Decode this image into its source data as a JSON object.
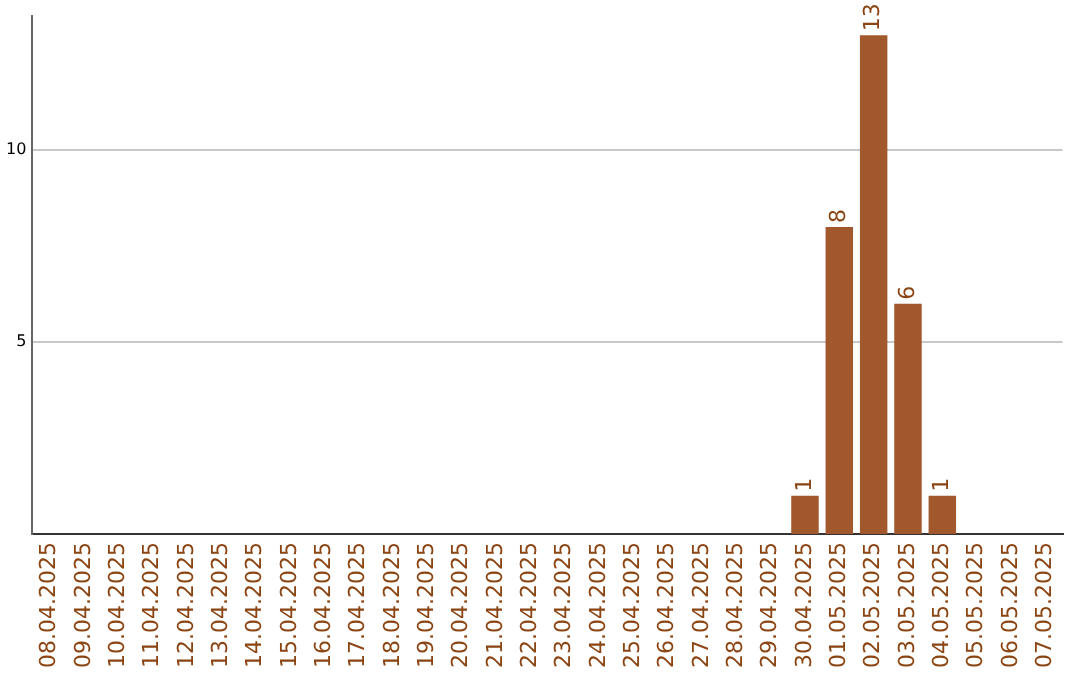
{
  "chart_data": {
    "type": "bar",
    "categories": [
      "08.04.2025",
      "09.04.2025",
      "10.04.2025",
      "11.04.2025",
      "12.04.2025",
      "13.04.2025",
      "14.04.2025",
      "15.04.2025",
      "16.04.2025",
      "17.04.2025",
      "18.04.2025",
      "19.04.2025",
      "20.04.2025",
      "21.04.2025",
      "22.04.2025",
      "23.04.2025",
      "24.04.2025",
      "25.04.2025",
      "26.04.2025",
      "27.04.2025",
      "28.04.2025",
      "29.04.2025",
      "30.04.2025",
      "01.05.2025",
      "02.05.2025",
      "03.05.2025",
      "04.05.2025",
      "05.05.2025",
      "06.05.2025",
      "07.05.2025"
    ],
    "values": [
      0,
      0,
      0,
      0,
      0,
      0,
      0,
      0,
      0,
      0,
      0,
      0,
      0,
      0,
      0,
      0,
      0,
      0,
      0,
      0,
      0,
      0,
      1,
      8,
      13,
      6,
      1,
      0,
      0,
      0
    ],
    "value_labels": [
      null,
      null,
      null,
      null,
      null,
      null,
      null,
      null,
      null,
      null,
      null,
      null,
      null,
      null,
      null,
      null,
      null,
      null,
      null,
      null,
      null,
      null,
      "1",
      "8",
      "13",
      "6",
      "1",
      null,
      null,
      null
    ],
    "color": "#a0582c",
    "ylim": [
      0,
      13.5
    ],
    "yticks": [
      5,
      10
    ],
    "grid": "y"
  }
}
